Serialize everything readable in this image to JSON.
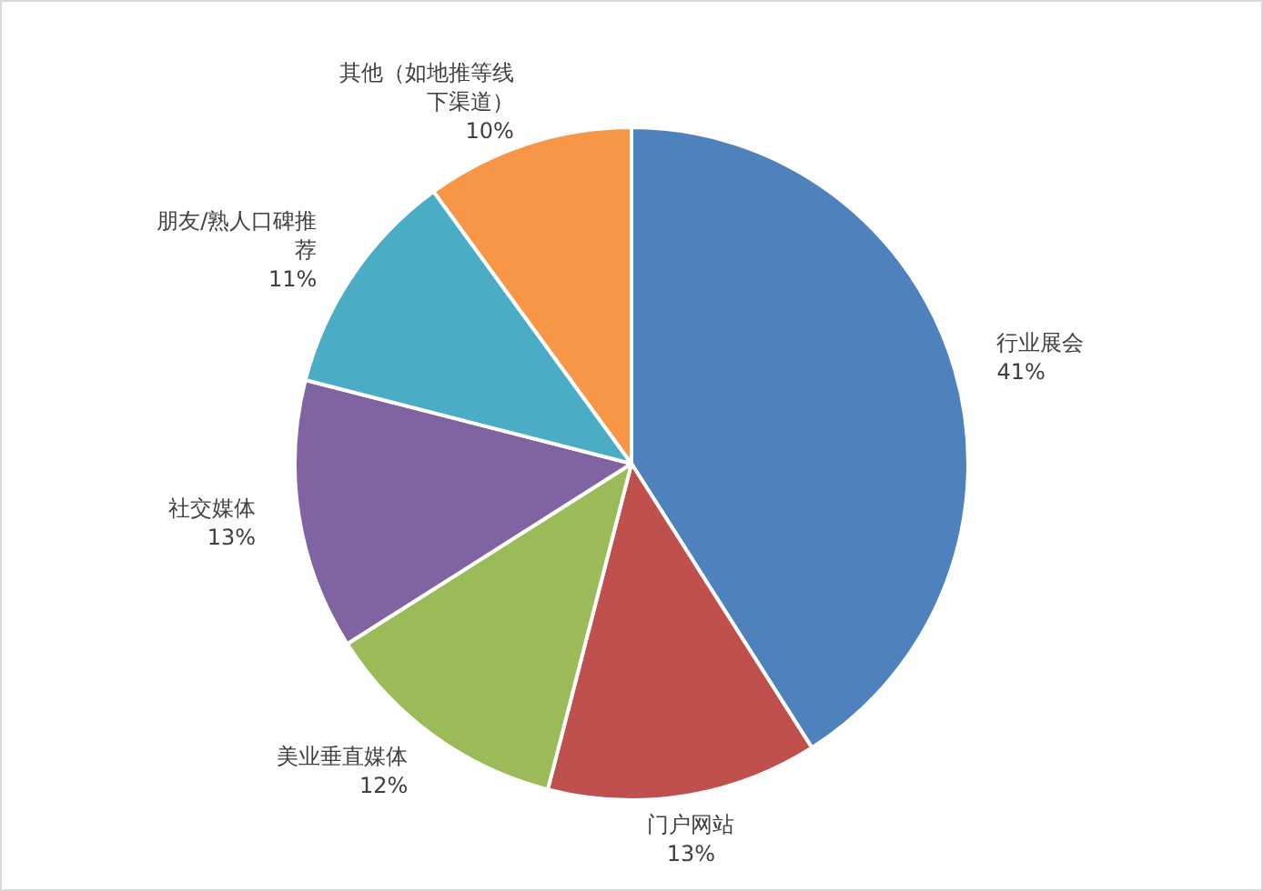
{
  "chart_data": {
    "type": "pie",
    "categories": [
      "行业展会",
      "门户网站",
      "美业垂直媒体",
      "社交媒体",
      "朋友/熟人口碑推荐",
      "其他（如地推等线下渠道）"
    ],
    "values": [
      41,
      13,
      12,
      13,
      11,
      10
    ],
    "value_labels": [
      "41%",
      "13%",
      "12%",
      "13%",
      "11%",
      "10%"
    ],
    "colors": [
      "#4f81bd",
      "#c0504d",
      "#9bbb59",
      "#8064a2",
      "#4bacc6",
      "#f79646"
    ]
  }
}
